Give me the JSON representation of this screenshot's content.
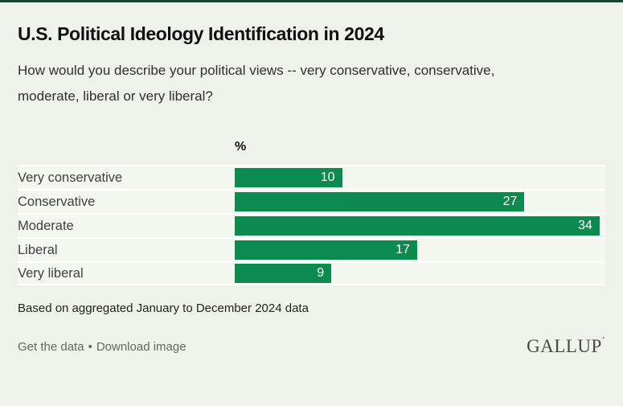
{
  "header": {
    "title": "U.S. Political Ideology Identification in 2024",
    "subtitle_line1": "How would you describe your political views -- very conservative, conservative,",
    "subtitle_line2": "moderate, liberal or very liberal?"
  },
  "chart_data": {
    "type": "bar",
    "orientation": "horizontal",
    "unit_header": "%",
    "categories": [
      "Very conservative",
      "Conservative",
      "Moderate",
      "Liberal",
      "Very liberal"
    ],
    "values": [
      10,
      27,
      34,
      17,
      9
    ],
    "xlim": [
      0,
      34
    ],
    "value_labels": "inside-end, white",
    "bar_color": "#0d8a4f",
    "grid": false,
    "legend": false
  },
  "note": "Based on aggregated January to December 2024 data",
  "footer": {
    "get_data_label": "Get the data",
    "separator": "•",
    "download_label": "Download image",
    "logo": "GALLUP",
    "logo_mark": "’"
  },
  "colors": {
    "page_bg": "#edf3eb",
    "row_bg": "#f2f8f0",
    "top_border": "#19432e",
    "bar_green": "#0d8a4f"
  }
}
